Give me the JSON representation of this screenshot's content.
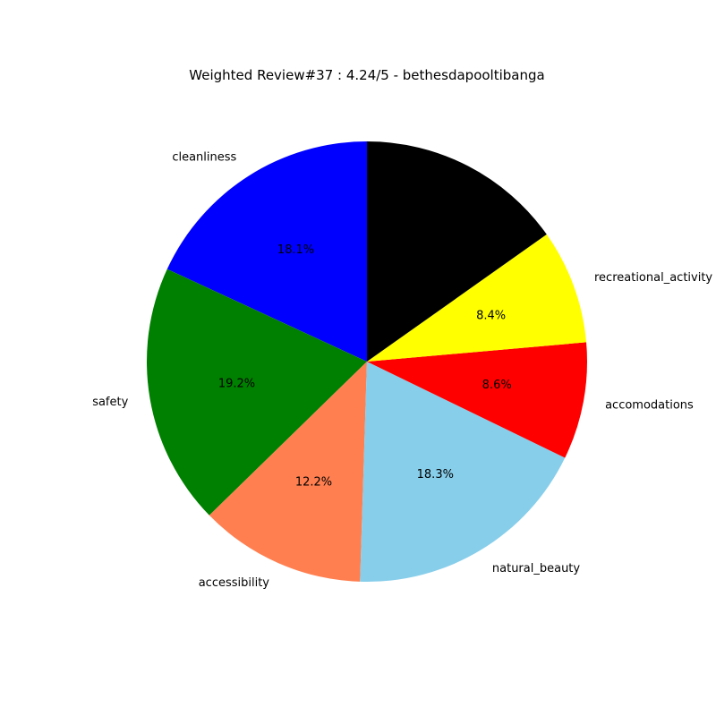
{
  "chart_data": {
    "type": "pie",
    "title": "Weighted Review#37 : 4.24/5 - bethesdapooltibanga",
    "start_angle_deg": 90,
    "direction": "counterclockwise",
    "slices": [
      {
        "label": "cleanliness",
        "value": 18.1,
        "pct_label": "18.1%",
        "color": "#0000ff"
      },
      {
        "label": "safety",
        "value": 19.2,
        "pct_label": "19.2%",
        "color": "#008000"
      },
      {
        "label": "accessibility",
        "value": 12.2,
        "pct_label": "12.2%",
        "color": "#ff7f50"
      },
      {
        "label": "natural_beauty",
        "value": 18.3,
        "pct_label": "18.3%",
        "color": "#87ceeb"
      },
      {
        "label": "accomodations",
        "value": 8.6,
        "pct_label": "8.6%",
        "color": "#ff0000"
      },
      {
        "label": "recreational_activity",
        "value": 8.4,
        "pct_label": "8.4%",
        "color": "#ffff00"
      },
      {
        "label": "",
        "value": 15.2,
        "pct_label": "",
        "color": "#000000"
      }
    ]
  }
}
